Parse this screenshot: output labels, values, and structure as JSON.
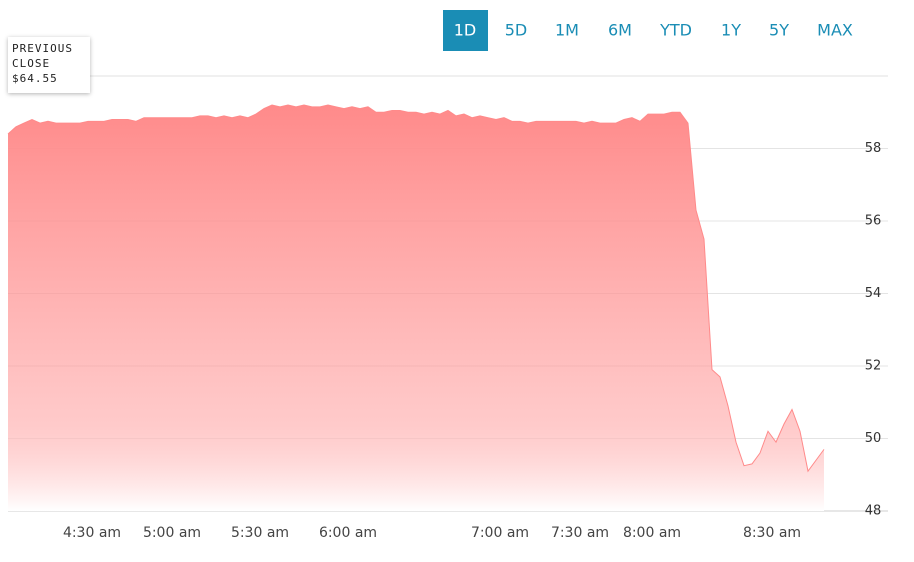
{
  "range_buttons": [
    "1D",
    "5D",
    "1M",
    "6M",
    "YTD",
    "1Y",
    "5Y",
    "MAX"
  ],
  "selected_range": "1D",
  "previous_close": {
    "label": "PREVIOUS CLOSE",
    "value": "$64.55"
  },
  "chart_data": {
    "type": "area",
    "color": "#ff8a8a",
    "categories": [
      null,
      null,
      null,
      null,
      null,
      null,
      null,
      null,
      null,
      null,
      "4:30 am",
      null,
      null,
      null,
      null,
      null,
      null,
      null,
      null,
      null,
      "5:00 am",
      null,
      null,
      null,
      null,
      null,
      null,
      null,
      null,
      null,
      null,
      "5:30 am",
      null,
      null,
      null,
      null,
      null,
      null,
      null,
      null,
      null,
      null,
      "6:00 am",
      null,
      null,
      null,
      null,
      null,
      null,
      null,
      null,
      null,
      null,
      null,
      null,
      null,
      null,
      null,
      null,
      null,
      null,
      "7:00 am",
      null,
      null,
      null,
      null,
      null,
      null,
      null,
      null,
      null,
      "7:30 am",
      null,
      null,
      null,
      null,
      null,
      null,
      null,
      null,
      "8:00 am",
      null,
      null,
      null,
      null,
      null,
      null,
      null,
      null,
      null,
      null,
      null,
      null,
      null,
      null,
      "8:30 am",
      null,
      null,
      null,
      null,
      null,
      null,
      null
    ],
    "values": [
      58.4,
      58.6,
      58.7,
      58.8,
      58.7,
      58.75,
      58.7,
      58.7,
      58.7,
      58.7,
      58.75,
      58.75,
      58.75,
      58.8,
      58.8,
      58.8,
      58.75,
      58.85,
      58.85,
      58.85,
      58.85,
      58.85,
      58.85,
      58.85,
      58.9,
      58.9,
      58.85,
      58.9,
      58.85,
      58.9,
      58.85,
      58.95,
      59.1,
      59.2,
      59.15,
      59.2,
      59.15,
      59.2,
      59.15,
      59.15,
      59.2,
      59.15,
      59.1,
      59.15,
      59.1,
      59.15,
      59.0,
      59.0,
      59.05,
      59.05,
      59.0,
      59.0,
      58.95,
      59.0,
      58.95,
      59.05,
      58.9,
      58.95,
      58.85,
      58.9,
      58.85,
      58.8,
      58.85,
      58.75,
      58.75,
      58.7,
      58.75,
      58.75,
      58.75,
      58.75,
      58.75,
      58.75,
      58.7,
      58.75,
      58.7,
      58.7,
      58.7,
      58.8,
      58.85,
      58.75,
      58.95,
      58.95,
      58.95,
      59.0,
      59.0,
      58.7,
      56.3,
      55.5,
      51.9,
      51.7,
      50.9,
      49.9,
      49.25,
      49.3,
      49.6,
      50.2,
      49.9,
      50.4,
      50.8,
      50.2,
      49.1,
      49.4,
      49.7
    ],
    "ylim": [
      48,
      60
    ],
    "yticks": [
      48,
      50,
      52,
      54,
      56,
      58
    ],
    "grid": true
  }
}
